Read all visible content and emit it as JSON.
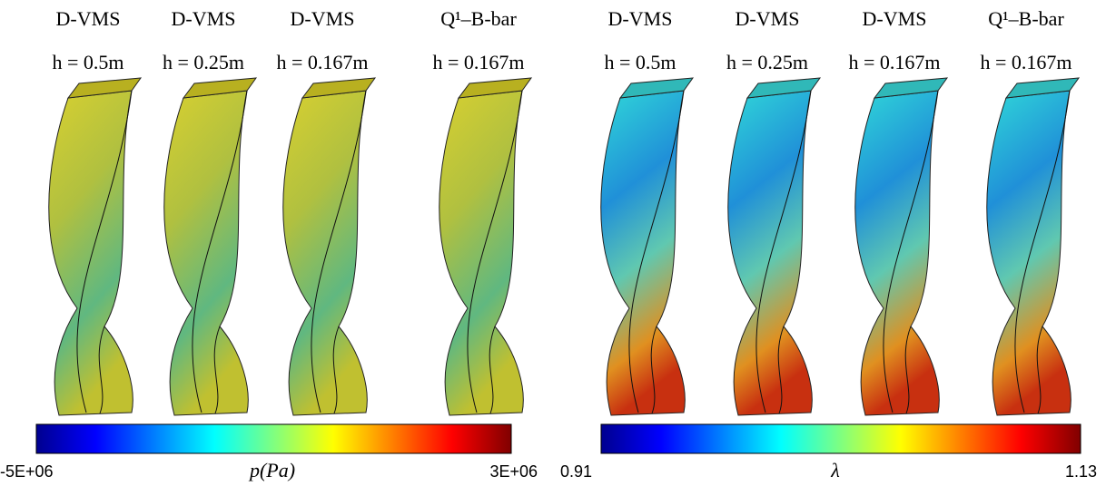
{
  "panels": [
    {
      "columns": [
        {
          "method": "D-VMS",
          "h": "h = 0.5m"
        },
        {
          "method": "D-VMS",
          "h": "h = 0.25m"
        },
        {
          "method": "D-VMS",
          "h": "h = 0.167m"
        },
        {
          "method": "Q¹–B-bar",
          "h": "h = 0.167m"
        }
      ],
      "colorbar": {
        "min_label": "-5E+06",
        "title": "p(Pa)",
        "max_label": "3E+06"
      }
    },
    {
      "columns": [
        {
          "method": "D-VMS",
          "h": "h = 0.5m"
        },
        {
          "method": "D-VMS",
          "h": "h = 0.25m"
        },
        {
          "method": "D-VMS",
          "h": "h = 0.167m"
        },
        {
          "method": "Q¹–B-bar",
          "h": "h = 0.167m"
        }
      ],
      "colorbar": {
        "min_label": "0.91",
        "title": "λ",
        "max_label": "1.13"
      }
    }
  ]
}
